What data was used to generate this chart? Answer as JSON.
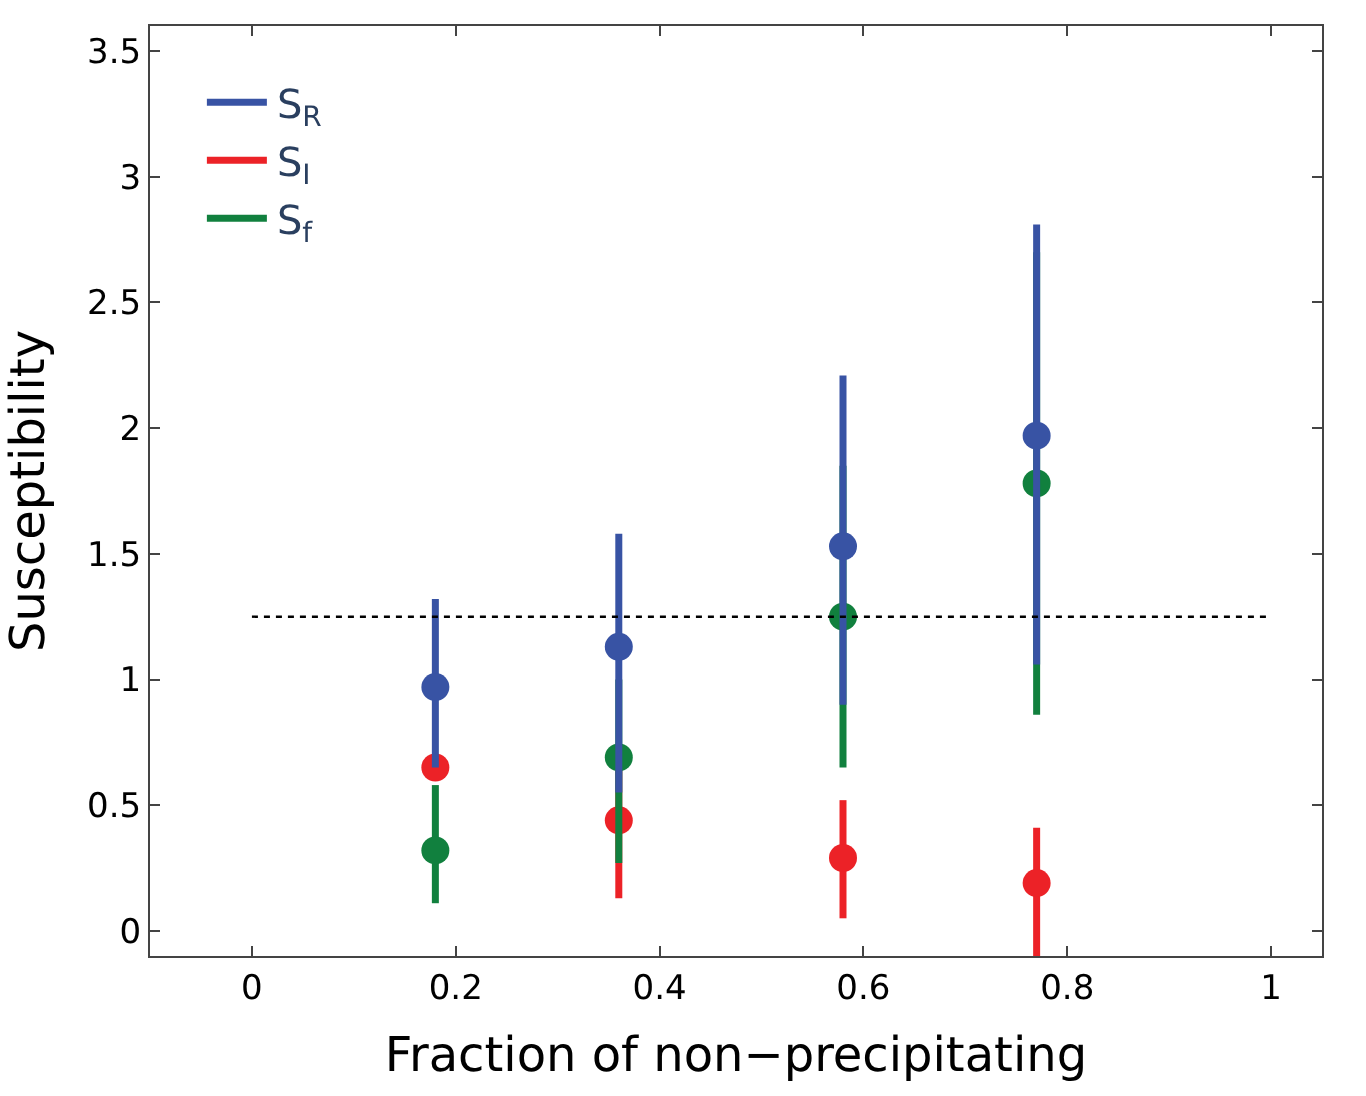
{
  "chart_data": {
    "type": "scatter",
    "xlabel": "Fraction of non−precipitating",
    "ylabel": "Susceptibility",
    "x": [
      0.18,
      0.36,
      0.58,
      0.77
    ],
    "series": [
      {
        "name": "S$_{R}$",
        "color": "#3853a4",
        "values": [
          0.97,
          1.13,
          1.53,
          1.97
        ],
        "errors": [
          [
            0.65,
            1.32
          ],
          [
            0.55,
            1.58
          ],
          [
            0.9,
            2.21
          ],
          [
            1.06,
            2.81
          ]
        ]
      },
      {
        "name": "S$_{I}$",
        "color": "#ec2227",
        "values": [
          0.65,
          0.44,
          0.29,
          0.19
        ],
        "errors": [
          null,
          [
            0.13,
            0.7
          ],
          [
            0.05,
            0.52
          ],
          [
            -0.1,
            0.41
          ]
        ]
      },
      {
        "name": "S$_{f}$",
        "color": "#11803e",
        "values": [
          0.32,
          0.69,
          1.25,
          1.78
        ],
        "errors": [
          [
            0.11,
            0.58
          ],
          [
            0.27,
            1.0
          ],
          [
            0.65,
            1.85
          ],
          [
            0.86,
            2.7
          ]
        ]
      }
    ],
    "xlim": [
      -0.1,
      1.05
    ],
    "xticks": [
      0,
      0.2,
      0.4,
      0.6,
      0.8,
      1
    ],
    "ylim": [
      -0.1,
      3.6
    ],
    "yticks": [
      0,
      0.5,
      1,
      1.5,
      2,
      2.5,
      3,
      3.5
    ],
    "ref_lines": [
      {
        "axis": "y",
        "value": 1.25,
        "color": "#000000",
        "line_style": "dotted"
      }
    ],
    "marker": "circle",
    "legend": "top left"
  }
}
